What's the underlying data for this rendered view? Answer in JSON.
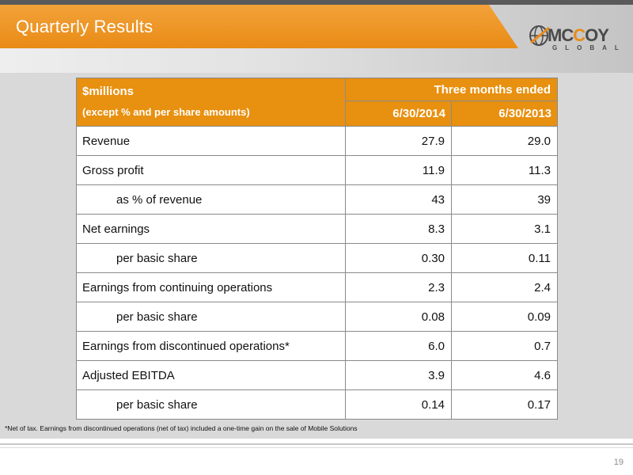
{
  "slide": {
    "title": "Quarterly Results",
    "page_number": "19"
  },
  "logo": {
    "word_prefix": "MC",
    "word_accent": "C",
    "word_suffix": "OY",
    "subtitle": "GLOBAL",
    "accent_color": "#e98b15"
  },
  "table": {
    "header_left_line1": "$millions",
    "header_left_line2": "(except  % and per share amounts)",
    "header_group": "Three months ended",
    "columns": [
      "6/30/2014",
      "6/30/2013"
    ],
    "rows": [
      {
        "label": "Revenue",
        "indent": false,
        "values": [
          "27.9",
          "29.0"
        ]
      },
      {
        "label": "Gross profit",
        "indent": false,
        "values": [
          "11.9",
          "11.3"
        ]
      },
      {
        "label": "as % of revenue",
        "indent": true,
        "values": [
          "43",
          "39"
        ]
      },
      {
        "label": "Net earnings",
        "indent": false,
        "values": [
          "8.3",
          "3.1"
        ]
      },
      {
        "label": "per basic share",
        "indent": true,
        "values": [
          "0.30",
          "0.11"
        ]
      },
      {
        "label": "Earnings from continuing operations",
        "indent": false,
        "values": [
          "2.3",
          "2.4"
        ]
      },
      {
        "label": "per basic share",
        "indent": true,
        "values": [
          "0.08",
          "0.09"
        ]
      },
      {
        "label": "Earnings from discontinued operations*",
        "indent": false,
        "values": [
          "6.0",
          "0.7"
        ]
      },
      {
        "label": "Adjusted EBITDA",
        "indent": false,
        "values": [
          "3.9",
          "4.6"
        ]
      },
      {
        "label": "per basic share",
        "indent": true,
        "values": [
          "0.14",
          "0.17"
        ]
      }
    ],
    "header_color": "#e8900f"
  },
  "footnote": "*Net of tax. Earnings from discontinued operations (net of tax) included a one-time gain on the sale of Mobile Solutions"
}
